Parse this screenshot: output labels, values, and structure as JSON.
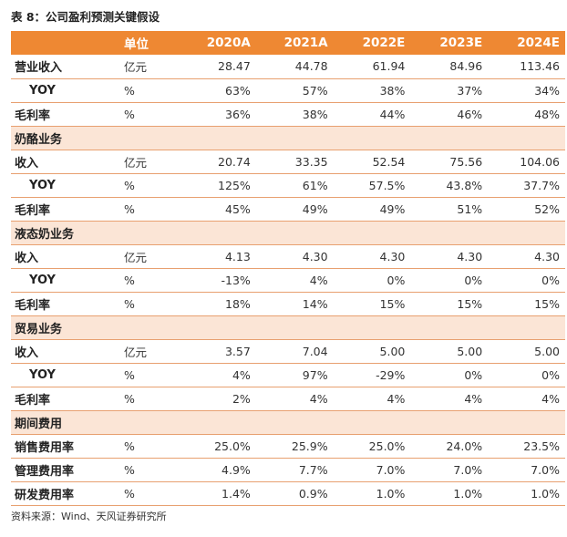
{
  "title": "表 8：公司盈利预测关键假设",
  "header": {
    "label": "",
    "unit": "单位",
    "years": [
      "2020A",
      "2021A",
      "2022E",
      "2023E",
      "2024E"
    ]
  },
  "rows": [
    {
      "type": "data",
      "label": "营业收入",
      "unit": "亿元",
      "values": [
        "28.47",
        "44.78",
        "61.94",
        "84.96",
        "113.46"
      ]
    },
    {
      "type": "sub",
      "label": "YOY",
      "unit": "%",
      "values": [
        "63%",
        "57%",
        "38%",
        "37%",
        "34%"
      ]
    },
    {
      "type": "data",
      "label": "毛利率",
      "unit": "%",
      "values": [
        "36%",
        "38%",
        "44%",
        "46%",
        "48%"
      ]
    },
    {
      "type": "section",
      "label": "奶酪业务"
    },
    {
      "type": "data",
      "label": "收入",
      "unit": "亿元",
      "values": [
        "20.74",
        "33.35",
        "52.54",
        "75.56",
        "104.06"
      ]
    },
    {
      "type": "sub",
      "label": "YOY",
      "unit": "%",
      "values": [
        "125%",
        "61%",
        "57.5%",
        "43.8%",
        "37.7%"
      ]
    },
    {
      "type": "data",
      "label": "毛利率",
      "unit": "%",
      "values": [
        "45%",
        "49%",
        "49%",
        "51%",
        "52%"
      ]
    },
    {
      "type": "section",
      "label": "液态奶业务"
    },
    {
      "type": "data",
      "label": "收入",
      "unit": "亿元",
      "values": [
        "4.13",
        "4.30",
        "4.30",
        "4.30",
        "4.30"
      ]
    },
    {
      "type": "sub",
      "label": "YOY",
      "unit": "%",
      "values": [
        "-13%",
        "4%",
        "0%",
        "0%",
        "0%"
      ]
    },
    {
      "type": "data",
      "label": "毛利率",
      "unit": "%",
      "values": [
        "18%",
        "14%",
        "15%",
        "15%",
        "15%"
      ]
    },
    {
      "type": "section",
      "label": "贸易业务"
    },
    {
      "type": "data",
      "label": "收入",
      "unit": "亿元",
      "values": [
        "3.57",
        "7.04",
        "5.00",
        "5.00",
        "5.00"
      ]
    },
    {
      "type": "sub",
      "label": "YOY",
      "unit": "%",
      "values": [
        "4%",
        "97%",
        "-29%",
        "0%",
        "0%"
      ]
    },
    {
      "type": "data",
      "label": "毛利率",
      "unit": "%",
      "values": [
        "2%",
        "4%",
        "4%",
        "4%",
        "4%"
      ]
    },
    {
      "type": "section",
      "label": "期间费用"
    },
    {
      "type": "data",
      "label": "销售费用率",
      "unit": "%",
      "values": [
        "25.0%",
        "25.9%",
        "25.0%",
        "24.0%",
        "23.5%"
      ]
    },
    {
      "type": "data",
      "label": "管理费用率",
      "unit": "%",
      "values": [
        "4.9%",
        "7.7%",
        "7.0%",
        "7.0%",
        "7.0%"
      ]
    },
    {
      "type": "data",
      "label": "研发费用率",
      "unit": "%",
      "values": [
        "1.4%",
        "0.9%",
        "1.0%",
        "1.0%",
        "1.0%"
      ]
    }
  ],
  "source": "资料来源：Wind、天风证券研究所",
  "colors": {
    "header_bg": "#ee8833",
    "section_bg": "#fbe5d6",
    "row_border": "#e8a070"
  }
}
